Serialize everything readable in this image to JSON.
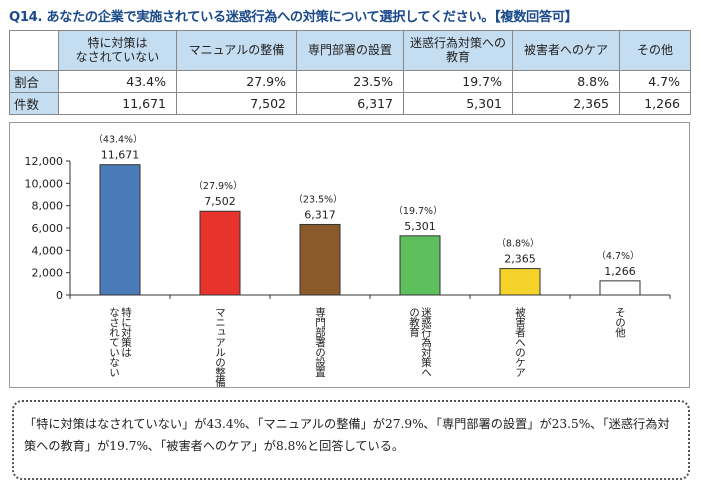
{
  "title": "Q14. あなたの企業で実施されている迷惑行為への対策について選択してください。【複数回答可】",
  "table": {
    "headers": [
      "特に対策は\nなされていない",
      "マニュアルの整備",
      "専門部署の設置",
      "迷惑行為対策への\n教育",
      "被害者へのケア",
      "その他"
    ],
    "rows": [
      {
        "label": "割合",
        "cells": [
          "43.4%",
          "27.9%",
          "23.5%",
          "19.7%",
          "8.8%",
          "4.7%"
        ]
      },
      {
        "label": "件数",
        "cells": [
          "11,671",
          "7,502",
          "6,317",
          "5,301",
          "2,365",
          "1,266"
        ]
      }
    ]
  },
  "chart_data": {
    "type": "bar",
    "categories": [
      "特に対策はなされていない",
      "マニュアルの整備",
      "専門部署の設置",
      "迷惑行為対策への教育",
      "被害者へのケア",
      "その他"
    ],
    "values": [
      11671,
      7502,
      6317,
      5301,
      2365,
      1266
    ],
    "value_labels": [
      "11,671",
      "7,502",
      "6,317",
      "5,301",
      "2,365",
      "1,266"
    ],
    "percent_labels": [
      "（43.4%）",
      "（27.9%）",
      "（23.5%）",
      "（19.7%）",
      "（8.8%）",
      "（4.7%）"
    ],
    "category_lines": [
      [
        "特に対策は",
        "なされていない"
      ],
      [
        "マニュアルの整備"
      ],
      [
        "専門部署の設置"
      ],
      [
        "迷惑行為対策へ",
        "の教育"
      ],
      [
        "被害者へのケア"
      ],
      [
        "その他"
      ]
    ],
    "colors": [
      "#4a7ab7",
      "#e8332c",
      "#8b5a2b",
      "#5cbf5c",
      "#f5d32a",
      "#ffffff"
    ],
    "ylim": [
      0,
      12000
    ],
    "yticks": [
      0,
      2000,
      4000,
      6000,
      8000,
      10000,
      12000
    ],
    "ytick_labels": [
      "0",
      "2,000",
      "4,000",
      "6,000",
      "8,000",
      "10,000",
      "12,000"
    ],
    "title": "",
    "xlabel": "",
    "ylabel": "",
    "grid": false
  },
  "note": "「特に対策はなされていない」が43.4%､「マニュアルの整備」が27.9%､「専門部署の設置」が23.5%､「迷惑行為対策への教育」が19.7%､「被害者へのケア」が8.8%と回答している。"
}
